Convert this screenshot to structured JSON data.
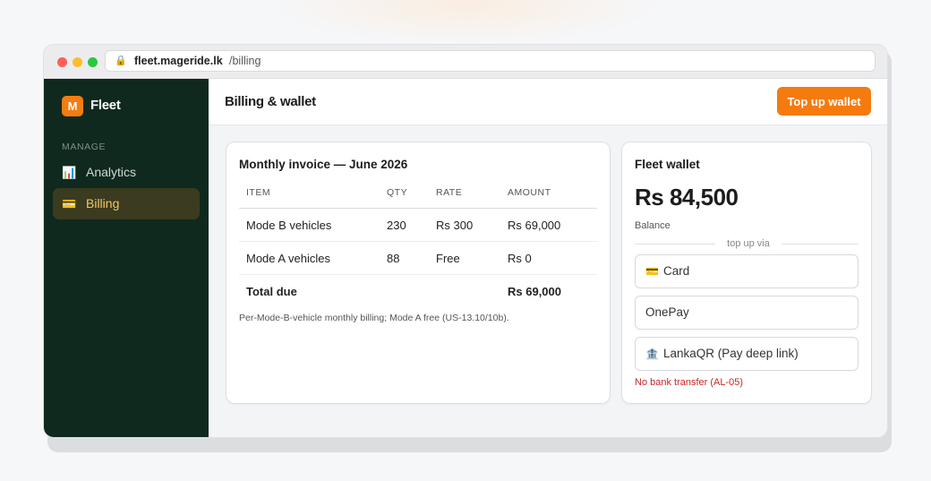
{
  "browser": {
    "url_host": "fleet.mageride.lk",
    "url_path": "/billing",
    "lock_icon": "lock-icon"
  },
  "sidebar": {
    "logo_letter": "M",
    "brand": "Fleet",
    "section_label": "MANAGE",
    "items": [
      {
        "label": "Analytics",
        "icon": "📊",
        "active": false
      },
      {
        "label": "Billing",
        "icon": "💳",
        "active": true
      }
    ]
  },
  "header": {
    "title": "Billing & wallet",
    "topup_label": "Top up wallet"
  },
  "invoice": {
    "title": "Monthly invoice — June 2026",
    "columns": [
      "ITEM",
      "QTY",
      "RATE",
      "AMOUNT"
    ],
    "rows": [
      {
        "item": "Mode B vehicles",
        "qty": "230",
        "rate": "Rs 300",
        "amount": "Rs 69,000"
      },
      {
        "item": "Mode A vehicles",
        "qty": "88",
        "rate": "Free",
        "amount": "Rs 0"
      }
    ],
    "total_label": "Total due",
    "total_amount": "Rs 69,000",
    "note": "Per-Mode-B-vehicle monthly billing; Mode A free (US-13.10/10b)."
  },
  "wallet": {
    "title": "Fleet wallet",
    "amount": "Rs 84,500",
    "balance_label": "Balance",
    "divider_text": "top up via",
    "options": [
      {
        "label": "Card",
        "icon": "💳"
      },
      {
        "label": "OnePay",
        "icon": ""
      },
      {
        "label": "LankaQR (Pay deep link)",
        "icon": "🏦"
      }
    ],
    "warning": "No bank transfer (AL-05)"
  },
  "colors": {
    "accent": "#f57b0f",
    "sidebar_bg": "#10291e",
    "active_nav_text": "#f4c46a",
    "warning": "#c62828"
  }
}
